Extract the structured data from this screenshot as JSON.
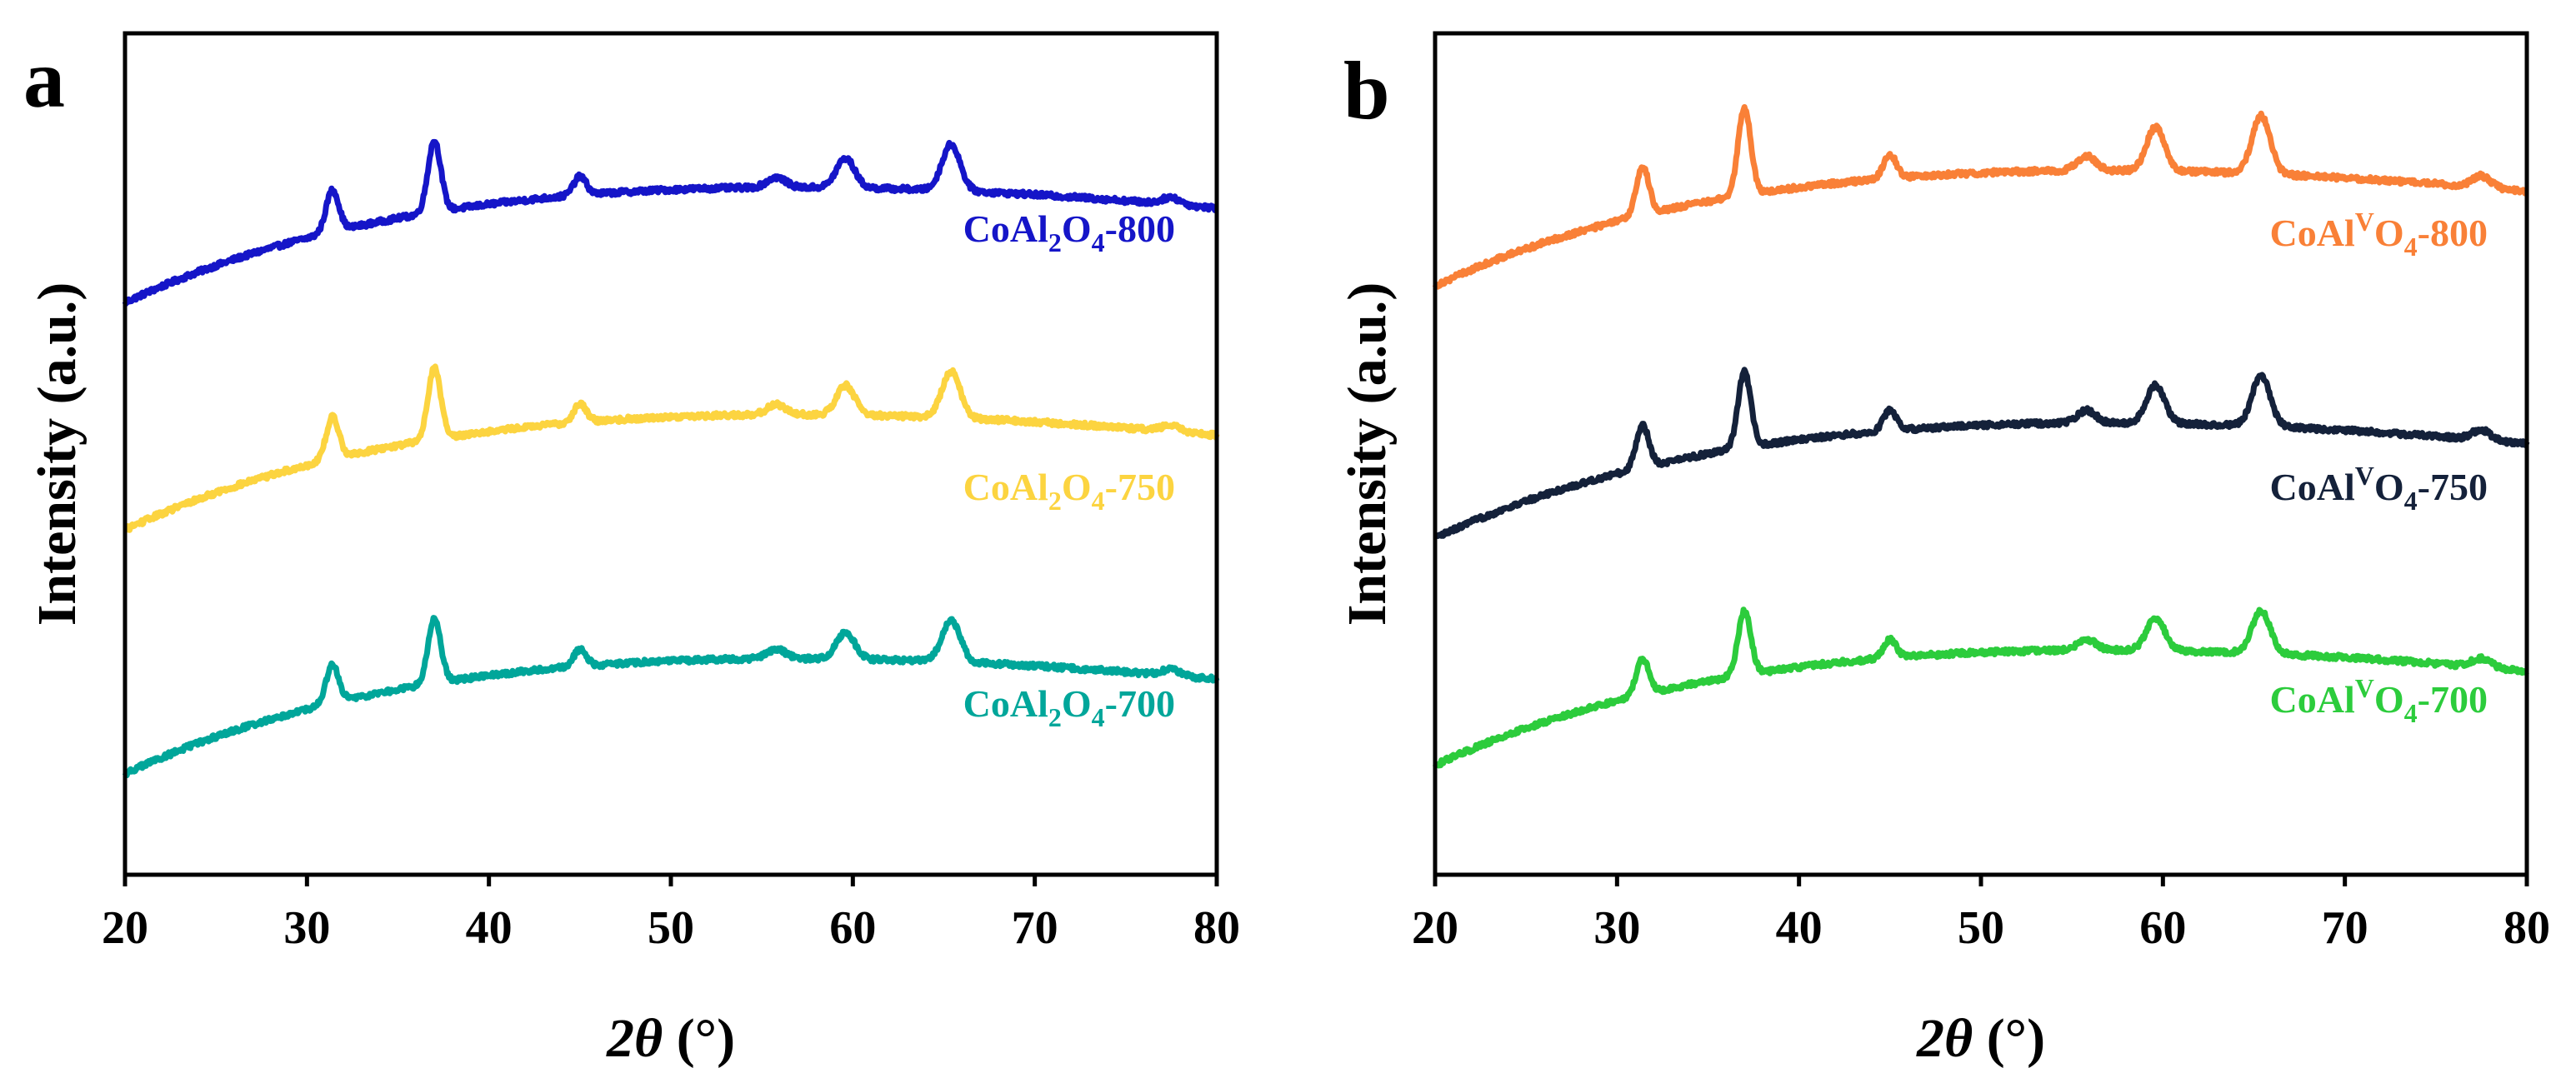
{
  "figure": {
    "panel_a_letter": "a",
    "panel_b_letter": "b"
  },
  "chart_data": [
    {
      "panel": "a",
      "type": "line",
      "title": "",
      "xlabel_italic": "2θ",
      "xlabel_rest": " (°)",
      "ylabel": "Intensity (a.u.)",
      "xlim": [
        20,
        80
      ],
      "ylim": [
        0,
        1
      ],
      "xticks": [
        20,
        30,
        40,
        50,
        60,
        70,
        80
      ],
      "grid": false,
      "series": [
        {
          "name": "CoAl2O4-800",
          "label_main": "CoAl",
          "label_sub1": "2",
          "label_mid": "O",
          "label_sub2": "4",
          "label_tail": "-800",
          "color": "#1515c8",
          "offset": 0.68,
          "slope": 0.82,
          "peak_scale": 1.0
        },
        {
          "name": "CoAl2O4-750",
          "label_main": "CoAl",
          "label_sub1": "2",
          "label_mid": "O",
          "label_sub2": "4",
          "label_tail": "-750",
          "color": "#fcd440",
          "offset": 0.41,
          "slope": 0.82,
          "peak_scale": 1.0
        },
        {
          "name": "CoAl2O4-700",
          "label_main": "CoAl",
          "label_sub1": "2",
          "label_mid": "O",
          "label_sub2": "4",
          "label_tail": "-700",
          "color": "#00a69a",
          "offset": 0.12,
          "slope": 0.82,
          "peak_scale": 0.9
        }
      ],
      "peaks_2theta": [
        31.4,
        37.0,
        45.0,
        55.8,
        59.6,
        65.4,
        77.5
      ],
      "peak_heights": [
        0.05,
        0.085,
        0.022,
        0.012,
        0.035,
        0.055,
        0.008
      ]
    },
    {
      "panel": "b",
      "type": "line",
      "title": "",
      "xlabel_italic": "2θ",
      "xlabel_rest": " (°)",
      "ylabel": "Intensity (a.u.)",
      "xlim": [
        20,
        80
      ],
      "ylim": [
        0,
        1
      ],
      "xticks": [
        20,
        30,
        40,
        50,
        60,
        70,
        80
      ],
      "grid": false,
      "series": [
        {
          "name": "CoAlVO4-800",
          "label_main": "CoAl",
          "label_sub1": "V",
          "label_mid": "O",
          "label_sub2": "4",
          "label_tail": "-800",
          "color": "#f98037",
          "offset": 0.7,
          "slope": 0.8,
          "peak_scale": 1.15
        },
        {
          "name": "CoAlVO4-750",
          "label_main": "CoAl",
          "label_sub1": "V",
          "label_mid": "O",
          "label_sub2": "4",
          "label_tail": "-750",
          "color": "#14213a",
          "offset": 0.4,
          "slope": 0.8,
          "peak_scale": 1.0
        },
        {
          "name": "CoAlVO4-700",
          "label_main": "CoAl",
          "label_sub1": "V",
          "label_mid": "O",
          "label_sub2": "4",
          "label_tail": "-700",
          "color": "#2ccc3c",
          "offset": 0.13,
          "slope": 0.8,
          "peak_scale": 0.85
        }
      ],
      "peaks_2theta": [
        31.4,
        37.0,
        45.0,
        55.8,
        59.6,
        65.4,
        77.5
      ],
      "peak_heights": [
        0.05,
        0.09,
        0.025,
        0.015,
        0.045,
        0.06,
        0.012
      ]
    }
  ]
}
